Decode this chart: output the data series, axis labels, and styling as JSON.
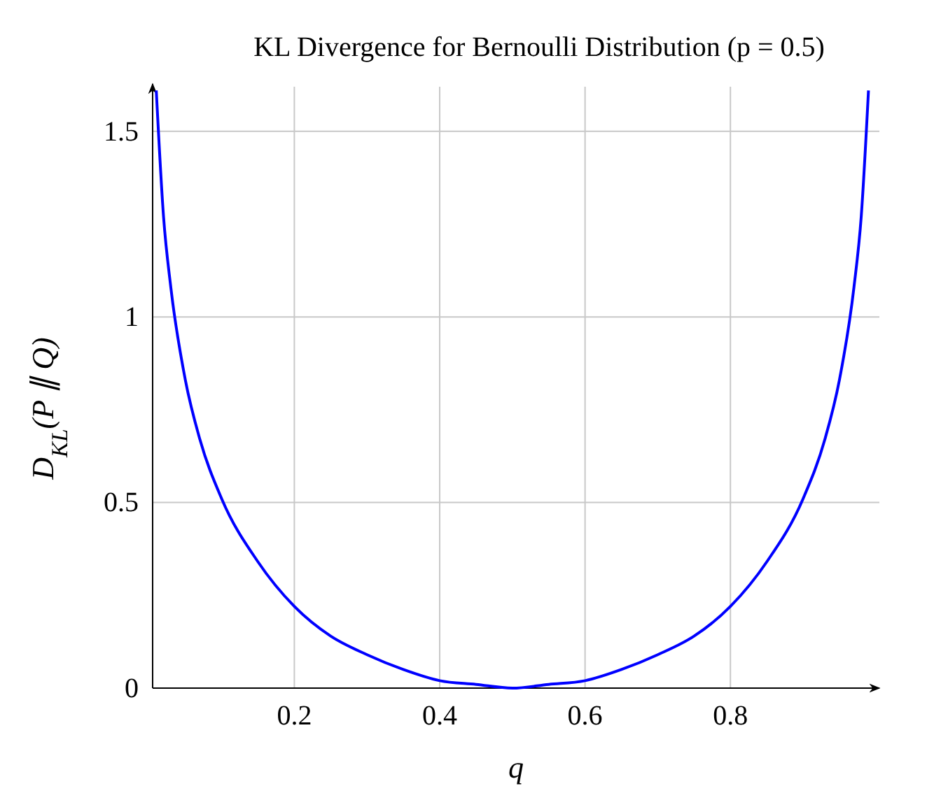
{
  "chart_data": {
    "type": "line",
    "title": "KL Divergence for Bernoulli Distribution (p = 0.5)",
    "xlabel": "q",
    "ylabel": "D$_{KL}$(P ∥ Q)",
    "x": [
      0.01,
      0.02,
      0.03,
      0.05,
      0.07,
      0.1,
      0.15,
      0.2,
      0.25,
      0.3,
      0.35,
      0.4,
      0.45,
      0.5,
      0.55,
      0.6,
      0.65,
      0.7,
      0.75,
      0.8,
      0.85,
      0.9,
      0.93,
      0.95,
      0.97,
      0.98,
      0.99
    ],
    "series": [
      {
        "color": "#0000ff",
        "values": [
          1.61,
          1.27,
          1.08,
          0.83,
          0.67,
          0.51,
          0.34,
          0.22,
          0.14,
          0.09,
          0.05,
          0.02,
          0.01,
          0,
          0.01,
          0.02,
          0.05,
          0.09,
          0.14,
          0.22,
          0.34,
          0.51,
          0.67,
          0.83,
          1.08,
          1.27,
          1.61
        ]
      }
    ],
    "xlim": [
      0.005,
      1.005
    ],
    "ylim": [
      0,
      1.62
    ],
    "xticks": [
      0.2,
      0.4,
      0.6,
      0.8
    ],
    "yticks": [
      0,
      0.5,
      1,
      1.5
    ],
    "grid": true,
    "marker": "none",
    "line_style": "solid"
  }
}
